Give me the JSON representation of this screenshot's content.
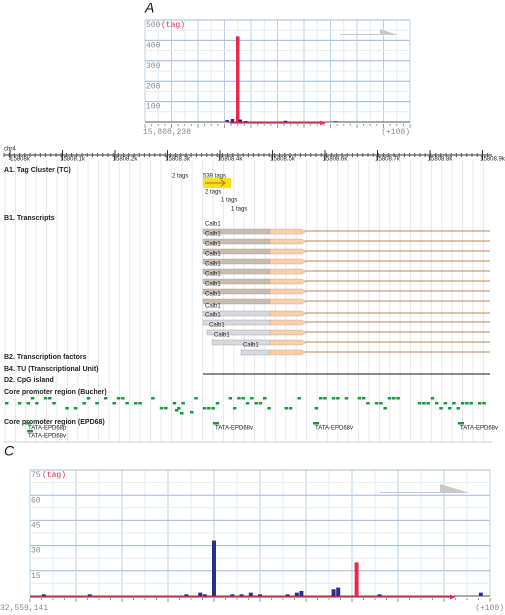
{
  "panel_labels": [
    "A",
    "C"
  ],
  "chart_data": [
    {
      "type": "bar",
      "y_unit": "(tag)",
      "x_start_label": "15,808,238",
      "x_end_label": "(+100)",
      "xlim": [
        0,
        100
      ],
      "ylim": [
        0,
        500
      ],
      "yticks": [
        100,
        200,
        300,
        400,
        500
      ],
      "x": [
        31,
        33,
        35,
        36,
        38,
        53,
        72
      ],
      "values": [
        10,
        15,
        420,
        12,
        5,
        6,
        4
      ],
      "colors": [
        "#2a2f8f",
        "#2a2f8f",
        "#e8294b",
        "#2a2f8f",
        "#2a2f8f",
        "#2a2f8f",
        "#2a2f8f"
      ],
      "grid": true
    },
    {
      "type": "bar",
      "y_unit": "(tag)",
      "x_start_label": "32,559,141",
      "x_end_label": "(+100)",
      "xlim": [
        0,
        100
      ],
      "ylim": [
        0,
        75
      ],
      "yticks": [
        15,
        30,
        45,
        60,
        75
      ],
      "x": [
        3,
        13,
        34,
        37,
        38,
        40,
        44,
        46,
        48,
        50,
        56,
        58,
        59,
        66,
        67,
        71,
        76,
        98
      ],
      "values": [
        1,
        1,
        1,
        2,
        1,
        33,
        1,
        1,
        2,
        1,
        1,
        2,
        3,
        4,
        5,
        20,
        1,
        2
      ],
      "colors": [
        "#2a2f8f",
        "#2a2f8f",
        "#2a2f8f",
        "#2a2f8f",
        "#2a2f8f",
        "#2a2f8f",
        "#2a2f8f",
        "#2a2f8f",
        "#2a2f8f",
        "#2a2f8f",
        "#2a2f8f",
        "#2a2f8f",
        "#2a2f8f",
        "#2a2f8f",
        "#2a2f8f",
        "#e8294b",
        "#2a2f8f",
        "#2a2f8f"
      ],
      "grid": true
    }
  ],
  "browser": {
    "chrom": "chr4",
    "ruler": [
      "15808k",
      "15808.1k",
      "15808.2k",
      "15808.3k",
      "15808.4k",
      "15808.5k",
      "15808.6k",
      "15808.7k",
      "15808.8k",
      "15808.9k"
    ],
    "tracks": {
      "tag_cluster": "A1. Tag Cluster (TC)",
      "transcripts": "B1. Transcripts",
      "tf": "B2. Transcription factors",
      "tu": "B4. TU (Transcriptional Unit)",
      "cpg": "D2. CpG island",
      "bucher": "Core promoter region (Bucher)",
      "epd": "Core promoter region (EPD68)"
    },
    "tag_labels": [
      "2 tags",
      "539 tags",
      "2 tags",
      "1 tags",
      "1 tags"
    ],
    "transcript_labels": [
      "Calb1",
      "Calb1",
      "Calb1",
      "Calb1",
      "Calb1",
      "Calb1",
      "Calb1",
      "Calb1",
      "Calb1",
      "Calb1",
      "Calb1",
      "Calb1",
      "Calb1"
    ],
    "epd_labels": [
      "TATA-EPD68p",
      "TATA-EPD68v",
      "TATA-EPD68v",
      "TATA-EPD68v",
      "TATA-EPD68v"
    ]
  }
}
